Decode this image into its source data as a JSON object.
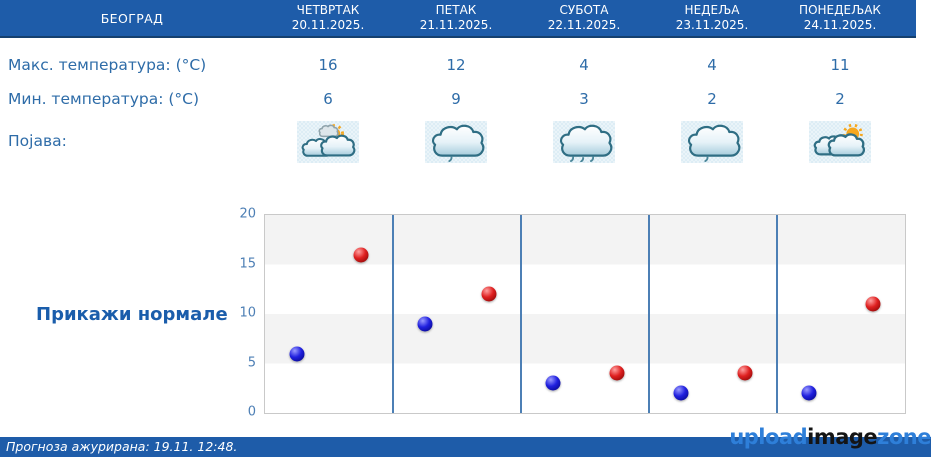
{
  "header": {
    "location": "БЕОГРАД",
    "days": [
      {
        "name": "ЧЕТВРТАК",
        "date": "20.11.2025."
      },
      {
        "name": "ПЕТАК",
        "date": "21.11.2025."
      },
      {
        "name": "СУБОТА",
        "date": "22.11.2025."
      },
      {
        "name": "НЕДЕЉА",
        "date": "23.11.2025."
      },
      {
        "name": "ПОНЕДЕЉАК",
        "date": "24.11.2025."
      }
    ]
  },
  "table": {
    "max_row": {
      "label": "Макс. температура: (°C)",
      "values": [
        "16",
        "12",
        "4",
        "4",
        "11"
      ]
    },
    "min_row": {
      "label": "Мин. температура: (°C)",
      "values": [
        "6",
        "9",
        "3",
        "2",
        "2"
      ]
    },
    "phenomenon_row": {
      "label": "Појава:",
      "icons": [
        "sun-clouds-icon",
        "cloud-drizzle-icon",
        "cloud-rain-icon",
        "cloud-drizzle-icon",
        "clouds-sun-icon"
      ]
    }
  },
  "normals_button": {
    "label": "Прикажи нормале"
  },
  "footer": {
    "updated_label": "Прогноза ажурирана:  19.11. 12:48."
  },
  "watermark": {
    "upload": "upload",
    "image": "image",
    "zone": "zone"
  },
  "colors": {
    "header_bg": "#1e5ca9",
    "text_accent": "#2e6ca8",
    "link": "#1a5dab",
    "max_point": "#df2020",
    "min_point": "#2020df",
    "day_separator": "#4c7fb5"
  },
  "chart_data": {
    "type": "scatter",
    "categories": [
      "20.11.2025.",
      "21.11.2025.",
      "22.11.2025.",
      "23.11.2025.",
      "24.11.2025."
    ],
    "series": [
      {
        "name": "Макс. температура (°C)",
        "color": "#df2020",
        "values": [
          16,
          12,
          4,
          4,
          11
        ]
      },
      {
        "name": "Мин. температура (°C)",
        "color": "#2020df",
        "values": [
          6,
          9,
          3,
          2,
          2
        ]
      }
    ],
    "title": "",
    "xlabel": "",
    "ylabel": "",
    "ylim": [
      0,
      20
    ],
    "yticks": [
      0,
      5,
      10,
      15,
      20
    ],
    "grid": "horizontal-bands",
    "legend": "none"
  }
}
